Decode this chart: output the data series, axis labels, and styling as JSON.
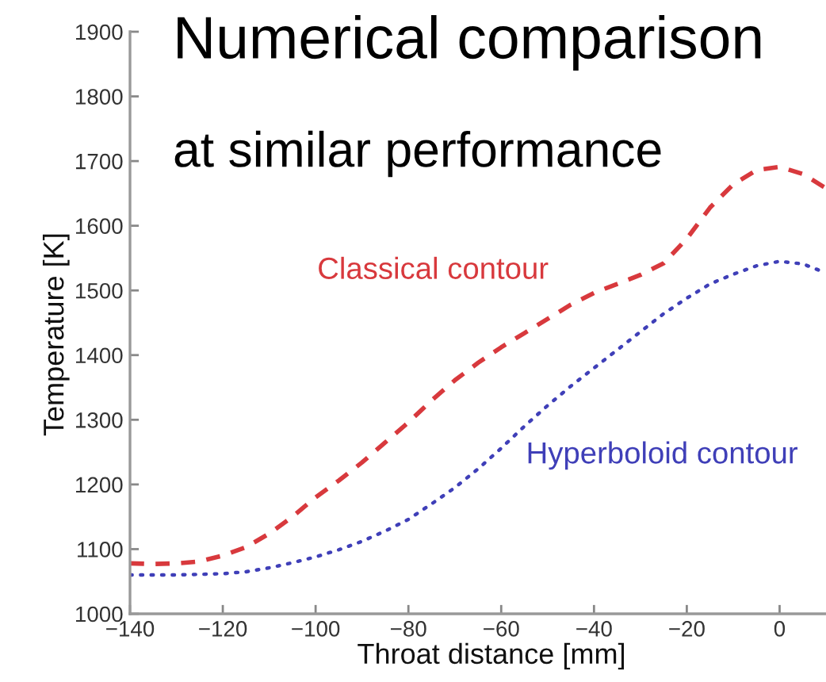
{
  "chart_data": {
    "type": "line",
    "title": "Numerical comparison",
    "subtitle": "at similar performance",
    "xlabel": "Throat distance [mm]",
    "ylabel": "Temperature [K]",
    "xlim": [
      -140,
      10
    ],
    "xticks": [
      -140,
      -120,
      -100,
      -80,
      -60,
      -40,
      -20,
      0
    ],
    "ylim": [
      1000,
      1900
    ],
    "yticks": [
      1000,
      1100,
      1200,
      1300,
      1400,
      1500,
      1600,
      1700,
      1800,
      1900
    ],
    "grid": false,
    "legend": false,
    "x": [
      -140,
      -135,
      -130,
      -125,
      -120,
      -115,
      -110,
      -105,
      -100,
      -95,
      -90,
      -85,
      -80,
      -75,
      -70,
      -65,
      -60,
      -55,
      -50,
      -45,
      -40,
      -35,
      -30,
      -25,
      -20,
      -15,
      -10,
      -5,
      0,
      5,
      10
    ],
    "series": [
      {
        "name": "Classical contour",
        "color": "#d8393d",
        "line_style": "dashed",
        "values": [
          1078,
          1077,
          1078,
          1081,
          1090,
          1103,
          1124,
          1150,
          1180,
          1206,
          1234,
          1265,
          1296,
          1330,
          1361,
          1388,
          1412,
          1434,
          1456,
          1478,
          1496,
          1510,
          1524,
          1542,
          1580,
          1628,
          1664,
          1686,
          1691,
          1680,
          1658
        ]
      },
      {
        "name": "Hyperboloid contour",
        "color": "#3f3fb8",
        "line_style": "dotted",
        "values": [
          1060,
          1060,
          1060,
          1061,
          1062,
          1065,
          1071,
          1079,
          1088,
          1099,
          1112,
          1128,
          1146,
          1170,
          1195,
          1224,
          1256,
          1290,
          1322,
          1352,
          1380,
          1408,
          1436,
          1464,
          1488,
          1510,
          1525,
          1538,
          1545,
          1541,
          1527
        ]
      }
    ]
  }
}
